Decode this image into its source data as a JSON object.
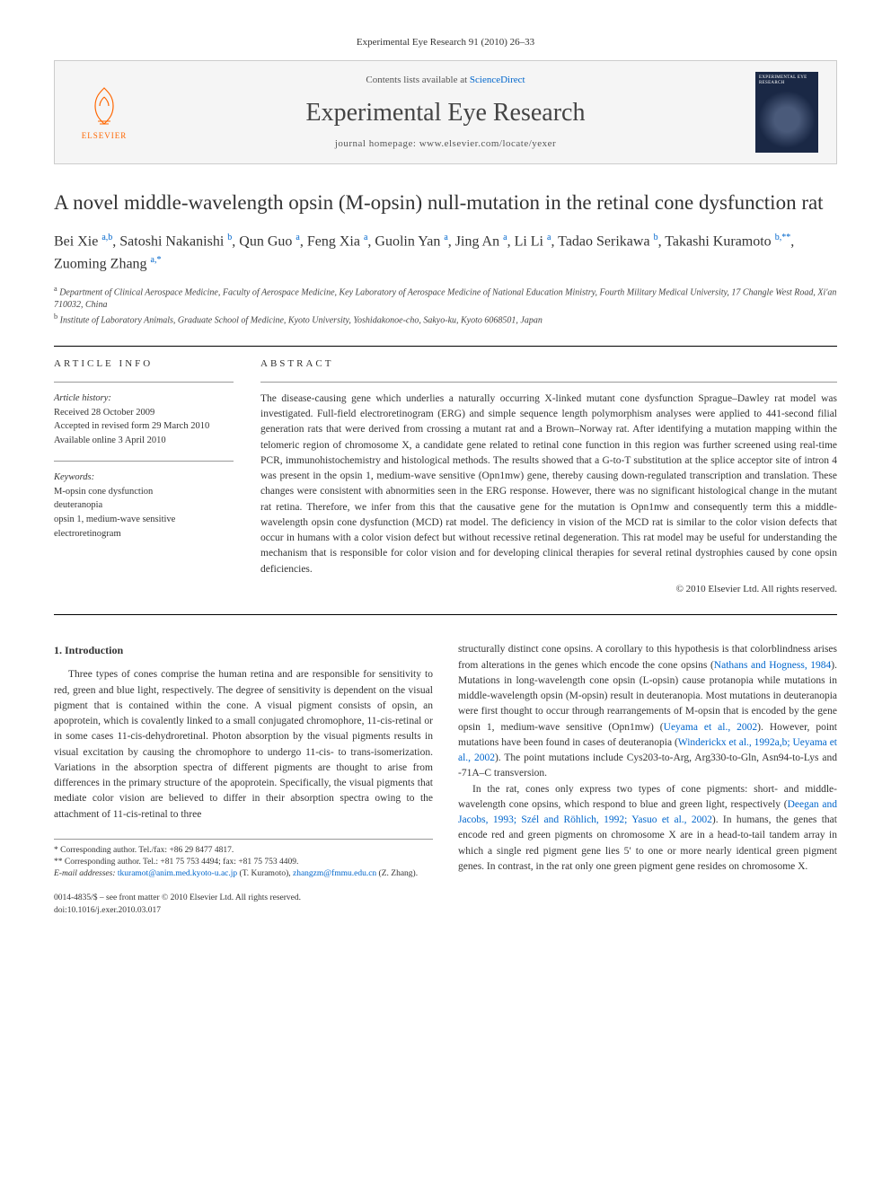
{
  "citation": "Experimental Eye Research 91 (2010) 26–33",
  "contents_label_pre": "Contents lists available at ",
  "contents_label_link": "ScienceDirect",
  "journal_title": "Experimental Eye Research",
  "journal_homepage": "journal homepage: www.elsevier.com/locate/yexer",
  "publisher_name": "ELSEVIER",
  "cover_title": "EXPERIMENTAL EYE RESEARCH",
  "article_title": "A novel middle-wavelength opsin (M-opsin) null-mutation in the retinal cone dysfunction rat",
  "authors_html": "Bei Xie <sup>a,b</sup>, Satoshi Nakanishi <sup>b</sup>, Qun Guo <sup>a</sup>, Feng Xia <sup>a</sup>, Guolin Yan <sup>a</sup>, Jing An <sup>a</sup>, Li Li <sup>a</sup>, Tadao Serikawa <sup>b</sup>, Takashi Kuramoto <sup>b,**</sup>, Zuoming Zhang <sup>a,*</sup>",
  "affiliations": {
    "a": "Department of Clinical Aerospace Medicine, Faculty of Aerospace Medicine, Key Laboratory of Aerospace Medicine of National Education Ministry, Fourth Military Medical University, 17 Changle West Road, Xi'an 710032, China",
    "b": "Institute of Laboratory Animals, Graduate School of Medicine, Kyoto University, Yoshidakonoe-cho, Sakyo-ku, Kyoto 6068501, Japan"
  },
  "article_info_label": "ARTICLE INFO",
  "abstract_label": "ABSTRACT",
  "history_label": "Article history:",
  "history": {
    "received": "Received 28 October 2009",
    "accepted": "Accepted in revised form 29 March 2010",
    "online": "Available online 3 April 2010"
  },
  "keywords_label": "Keywords:",
  "keywords": [
    "M-opsin cone dysfunction",
    "deuteranopia",
    "opsin 1, medium-wave sensitive",
    "electroretinogram"
  ],
  "abstract": "The disease-causing gene which underlies a naturally occurring X-linked mutant cone dysfunction Sprague–Dawley rat model was investigated. Full-field electroretinogram (ERG) and simple sequence length polymorphism analyses were applied to 441-second filial generation rats that were derived from crossing a mutant rat and a Brown–Norway rat. After identifying a mutation mapping within the telomeric region of chromosome X, a candidate gene related to retinal cone function in this region was further screened using real-time PCR, immunohistochemistry and histological methods. The results showed that a G-to-T substitution at the splice acceptor site of intron 4 was present in the opsin 1, medium-wave sensitive (Opn1mw) gene, thereby causing down-regulated transcription and translation. These changes were consistent with abnormities seen in the ERG response. However, there was no significant histological change in the mutant rat retina. Therefore, we infer from this that the causative gene for the mutation is Opn1mw and consequently term this a middle-wavelength opsin cone dysfunction (MCD) rat model. The deficiency in vision of the MCD rat is similar to the color vision defects that occur in humans with a color vision defect but without recessive retinal degeneration. This rat model may be useful for understanding the mechanism that is responsible for color vision and for developing clinical therapies for several retinal dystrophies caused by cone opsin deficiencies.",
  "copyright": "© 2010 Elsevier Ltd. All rights reserved.",
  "intro_heading": "1. Introduction",
  "intro_col1": "Three types of cones comprise the human retina and are responsible for sensitivity to red, green and blue light, respectively. The degree of sensitivity is dependent on the visual pigment that is contained within the cone. A visual pigment consists of opsin, an apoprotein, which is covalently linked to a small conjugated chromophore, 11-cis-retinal or in some cases 11-cis-dehydroretinal. Photon absorption by the visual pigments results in visual excitation by causing the chromophore to undergo 11-cis- to trans-isomerization. Variations in the absorption spectra of different pigments are thought to arise from differences in the primary structure of the apoprotein. Specifically, the visual pigments that mediate color vision are believed to differ in their absorption spectra owing to the attachment of 11-cis-retinal to three",
  "intro_col2_p1_pre": "structurally distinct cone opsins. A corollary to this hypothesis is that colorblindness arises from alterations in the genes which encode the cone opsins (",
  "intro_col2_p1_link1": "Nathans and Hogness, 1984",
  "intro_col2_p1_mid1": "). Mutations in long-wavelength cone opsin (L-opsin) cause protanopia while mutations in middle-wavelength opsin (M-opsin) result in deuteranopia. Most mutations in deuteranopia were first thought to occur through rearrangements of M-opsin that is encoded by the gene opsin 1, medium-wave sensitive (Opn1mw) (",
  "intro_col2_p1_link2": "Ueyama et al., 2002",
  "intro_col2_p1_mid2": "). However, point mutations have been found in cases of deuteranopia (",
  "intro_col2_p1_link3": "Winderickx et al., 1992a,b; Ueyama et al., 2002",
  "intro_col2_p1_post": "). The point mutations include Cys203-to-Arg, Arg330-to-Gln, Asn94-to-Lys and -71A–C transversion.",
  "intro_col2_p2_pre": "In the rat, cones only express two types of cone pigments: short- and middle-wavelength cone opsins, which respond to blue and green light, respectively (",
  "intro_col2_p2_link1": "Deegan and Jacobs, 1993; Szél and Röhlich, 1992; Yasuo et al., 2002",
  "intro_col2_p2_post": "). In humans, the genes that encode red and green pigments on chromosome X are in a head-to-tail tandem array in which a single red pigment gene lies 5′ to one or more nearly identical green pigment genes. In contrast, in the rat only one green pigment gene resides on chromosome X.",
  "footnotes": {
    "star": "* Corresponding author. Tel./fax: +86 29 8477 4817.",
    "dstar": "** Corresponding author. Tel.: +81 75 753 4494; fax: +81 75 753 4409.",
    "email_label": "E-mail addresses: ",
    "email1": "tkuramot@anim.med.kyoto-u.ac.jp",
    "email1_name": " (T. Kuramoto), ",
    "email2": "zhangzm@fmmu.edu.cn",
    "email2_name": " (Z. Zhang)."
  },
  "footer": {
    "issn_line": "0014-4835/$ – see front matter © 2010 Elsevier Ltd. All rights reserved.",
    "doi": "doi:10.1016/j.exer.2010.03.017"
  },
  "colors": {
    "link": "#0066cc",
    "publisher": "#ff6600",
    "cover_bg": "#1a2845",
    "box_bg": "#f5f5f5",
    "box_border": "#cccccc",
    "text": "#333333"
  }
}
